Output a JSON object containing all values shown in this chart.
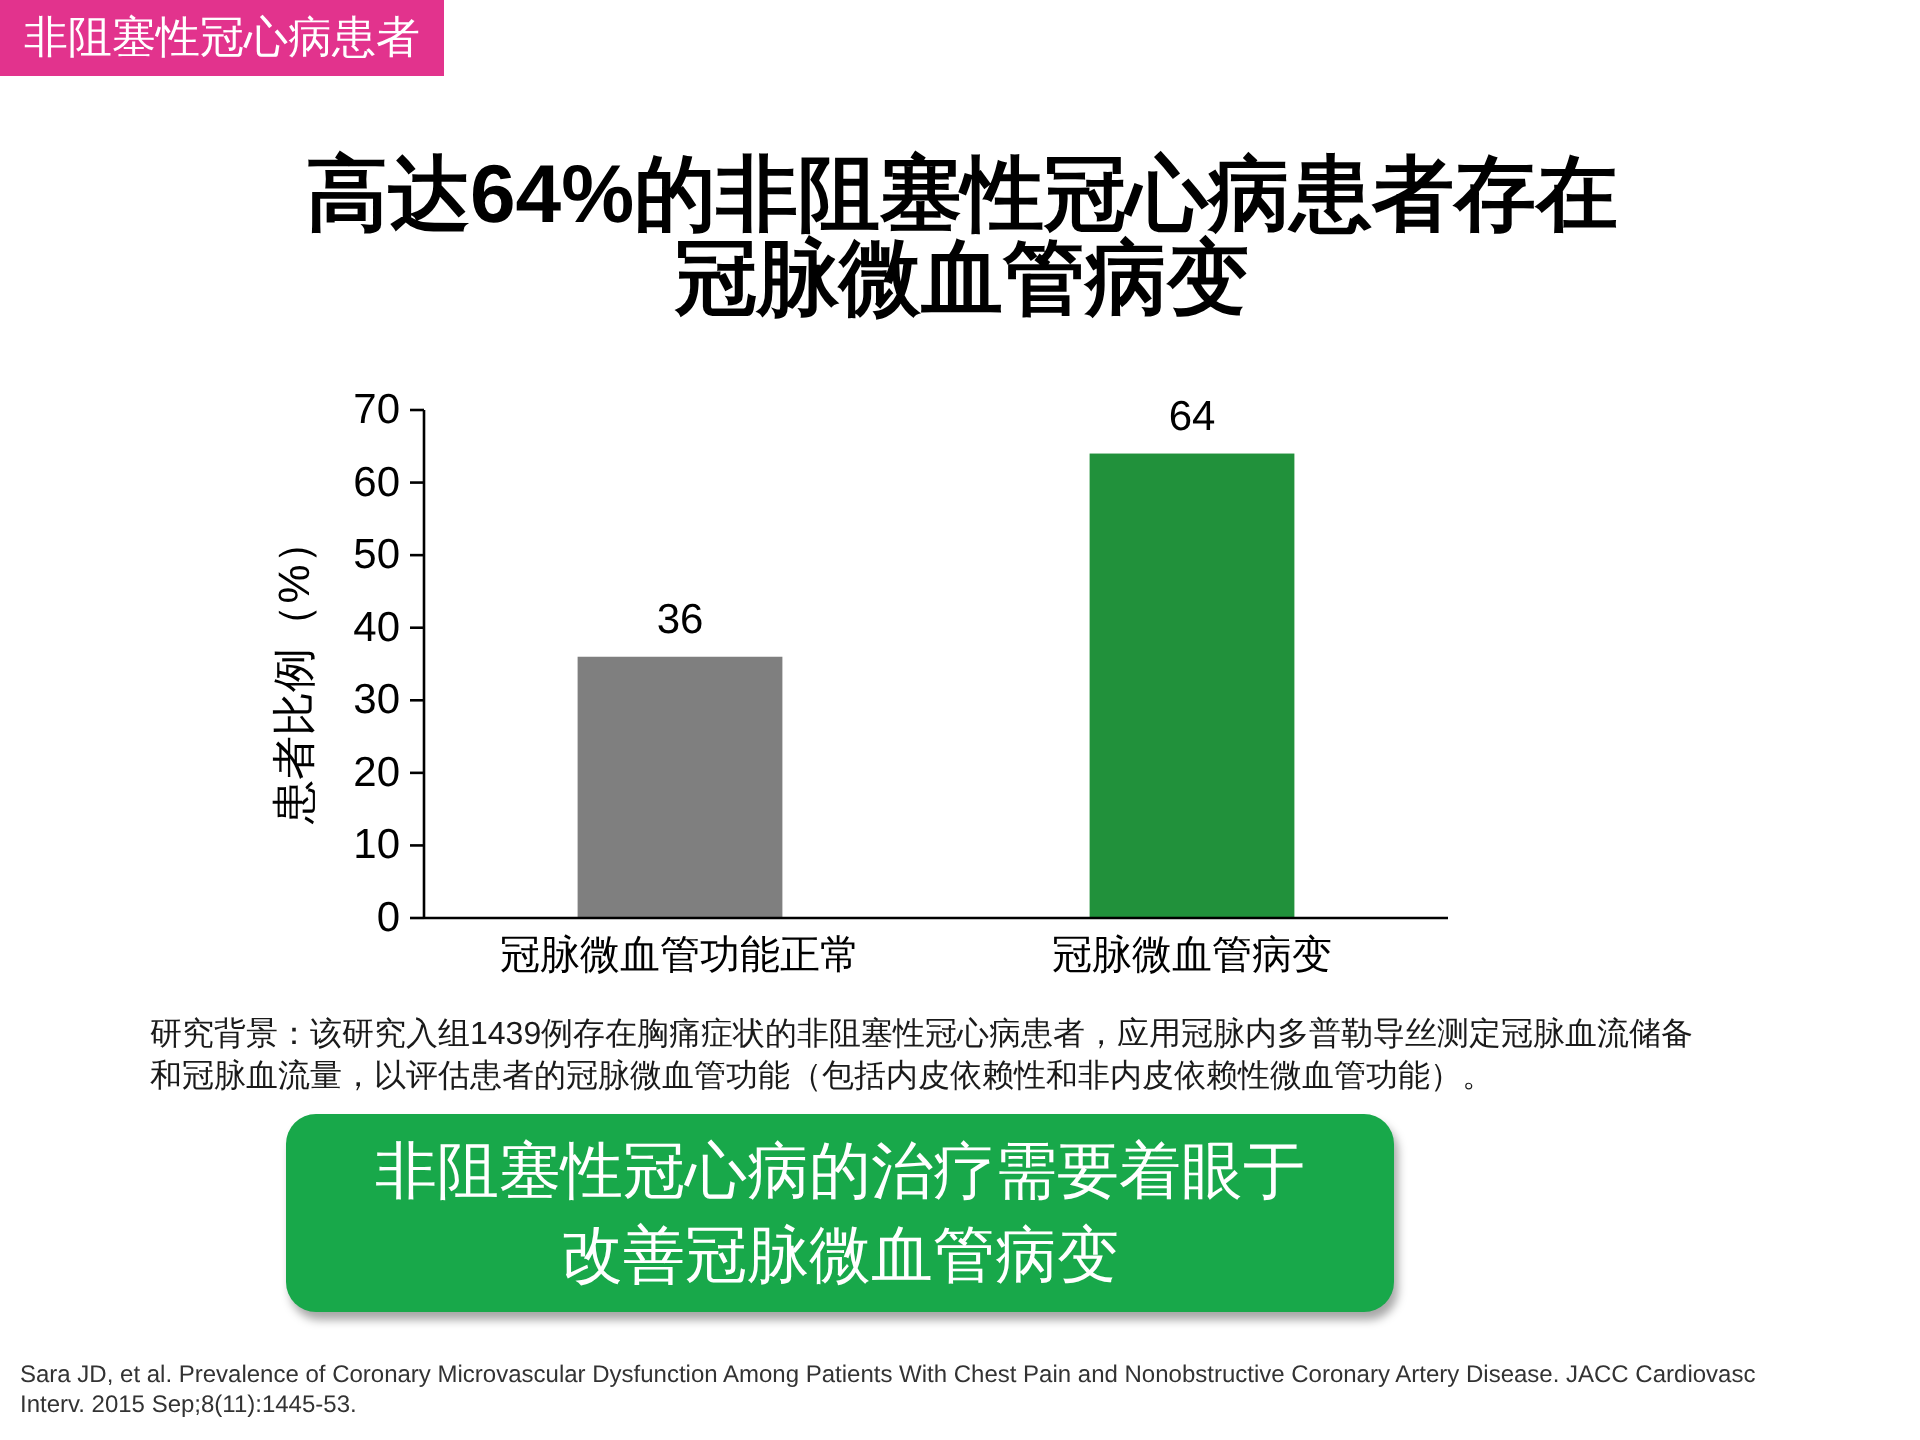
{
  "chart_data": {
    "type": "bar",
    "title": "高达64%的非阻塞性冠心病患者存在冠脉微血管病变",
    "ylabel": "患者比例（%）",
    "categories": [
      "冠脉微血管功能正常",
      "冠脉微血管病变"
    ],
    "values": [
      36,
      64
    ],
    "colors": [
      "#7f7f7f",
      "#21913b"
    ],
    "ylim": [
      0,
      70
    ],
    "yticks": [
      0,
      10,
      20,
      30,
      40,
      50,
      60,
      70
    ],
    "data_labels": true,
    "annotations": [
      "非阻塞性冠心病患者",
      "研究背景：该研究入组1439例存在胸痛症状的非阻塞性冠心病患者，应用冠脉内多普勒导丝测定冠脉血流储备和冠脉血流量，以评估患者的冠脉微血管功能（包括内皮依赖性和非内皮依赖性微血管功能）。",
      "非阻塞性冠心病的治疗需要着眼于改善冠脉微血管病变",
      "Sara JD, et al. Prevalence of Coronary Microvascular Dysfunction Among Patients With Chest Pain and Nonobstructive Coronary Artery Disease. JACC Cardiovasc\nInterv. 2015 Sep;8(11):1445-53."
    ]
  }
}
